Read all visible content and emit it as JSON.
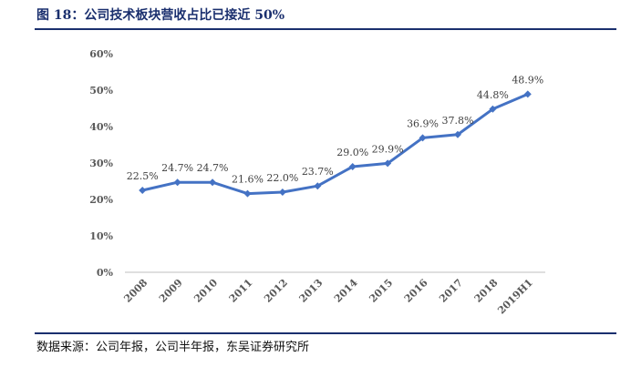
{
  "figure": {
    "title": "图 18：公司技术板块营收占比已接近 50%",
    "source": "数据来源：公司年报，公司半年报，东吴证券研究所"
  },
  "colors": {
    "title": "#1a2f6e",
    "line": "#4472c4",
    "axis_text": "#595959",
    "label_text": "#404040",
    "axis_line": "#bfbfbf"
  },
  "chart_data": {
    "type": "line",
    "title": "",
    "xlabel": "",
    "ylabel": "",
    "categories": [
      "2008",
      "2009",
      "2010",
      "2011",
      "2012",
      "2013",
      "2014",
      "2015",
      "2016",
      "2017",
      "2018",
      "2019H1"
    ],
    "series": [
      {
        "values": [
          22.5,
          24.7,
          24.7,
          21.6,
          22.0,
          23.7,
          29.0,
          29.9,
          36.9,
          37.8,
          44.8,
          48.9
        ],
        "data_labels": [
          "22.5%",
          "24.7%",
          "24.7%",
          "21.6%",
          "22.0%",
          "23.7%",
          "29.0%",
          "29.9%",
          "36.9%",
          "37.8%",
          "44.8%",
          "48.9%"
        ],
        "marker": "diamond"
      }
    ],
    "yticks": [
      "0%",
      "10%",
      "20%",
      "30%",
      "40%",
      "50%",
      "60%"
    ],
    "ylim": [
      0,
      60
    ],
    "grid": false,
    "legend": "none"
  }
}
